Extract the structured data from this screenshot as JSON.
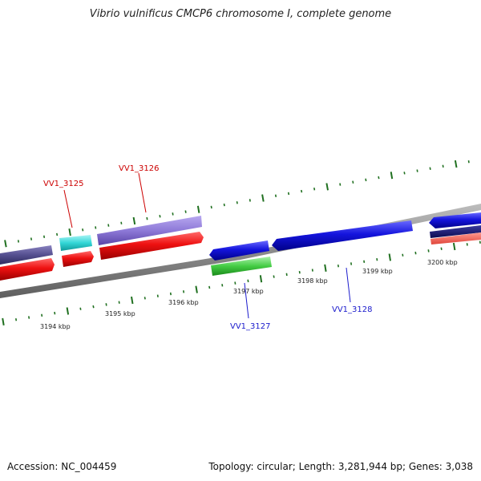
{
  "header": {
    "title": "Vibrio vulnificus CMCP6 chromosome I, complete genome"
  },
  "footer": {
    "accession": "Accession: NC_004459",
    "summary": "Topology: circular; Length: 3,281,944 bp; Genes: 3,038"
  },
  "colors": {
    "backbone": "#8a8a8a",
    "forward_gene": "#ee1111",
    "reverse_gene": "#1111dd",
    "tick": "#207020",
    "forward_label": "#cc0000",
    "reverse_label": "#1a1acc"
  },
  "genome_map": {
    "position_labels": [
      "3194 kbp",
      "3195 kbp",
      "3196 kbp",
      "3197 kbp",
      "3198 kbp",
      "3199 kbp",
      "3200 kbp"
    ],
    "gene_labels": [
      {
        "text": "VV1_3125",
        "strand": "forward"
      },
      {
        "text": "VV1_3126",
        "strand": "forward"
      },
      {
        "text": "VV1_3127",
        "strand": "reverse"
      },
      {
        "text": "VV1_3128",
        "strand": "reverse"
      }
    ]
  }
}
